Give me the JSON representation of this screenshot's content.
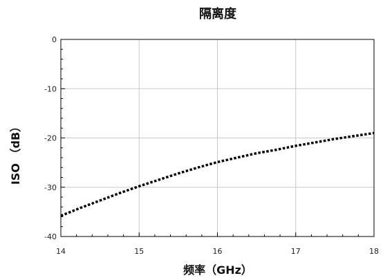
{
  "chart_data": {
    "type": "line",
    "title": "隔离度",
    "xlabel": "频率（GHz）",
    "ylabel": "ISO （dB）",
    "xlim": [
      14,
      18
    ],
    "ylim": [
      -40,
      0
    ],
    "x_ticks": [
      14,
      15,
      16,
      17,
      18
    ],
    "y_ticks": [
      0,
      -10,
      -20,
      -30,
      -40
    ],
    "x_tick_labels": [
      "14",
      "15",
      "16",
      "17",
      "18"
    ],
    "y_tick_labels": [
      "0",
      "-10",
      "-20",
      "-30",
      "-40"
    ],
    "grid": true,
    "series": [
      {
        "color": "#000000",
        "line_style": "dotted",
        "x": [
          14.0,
          14.25,
          14.5,
          14.75,
          15.0,
          15.25,
          15.5,
          15.75,
          16.0,
          16.25,
          16.5,
          16.75,
          17.0,
          17.25,
          17.5,
          17.75,
          18.0
        ],
        "y": [
          -35.8,
          -34.2,
          -32.7,
          -31.2,
          -29.8,
          -28.5,
          -27.2,
          -26.0,
          -24.9,
          -24.0,
          -23.1,
          -22.4,
          -21.6,
          -20.9,
          -20.2,
          -19.6,
          -19.0
        ]
      }
    ]
  }
}
